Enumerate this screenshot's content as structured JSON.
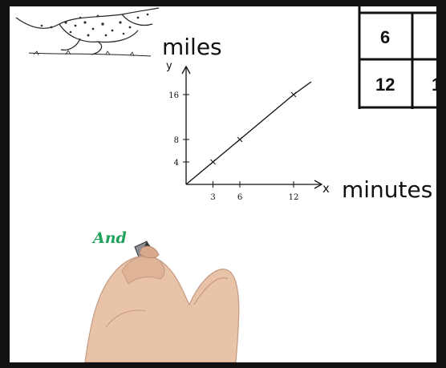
{
  "chart_data": {
    "type": "line",
    "xlabel": "minutes",
    "ylabel": "miles",
    "x_axis_letter": "x",
    "y_axis_letter": "y",
    "x_ticks": [
      "3",
      "6",
      "12"
    ],
    "y_ticks": [
      "16",
      "8",
      "4"
    ],
    "x_tick_values": [
      3,
      6,
      12
    ],
    "y_tick_values": [
      16,
      8,
      4
    ],
    "xlim": [
      0,
      16
    ],
    "ylim": [
      0,
      20
    ],
    "series": [
      {
        "x": [
          0,
          3,
          6,
          12
        ],
        "y": [
          0,
          4,
          8,
          16
        ]
      }
    ],
    "grid": false
  },
  "table": {
    "rows": [
      [
        "6",
        ""
      ],
      [
        "12",
        "1"
      ]
    ]
  },
  "caption": {
    "text": "And",
    "color": "#1fa35a"
  },
  "icons": [
    "cheetah-illustration",
    "hand-holding-marker"
  ]
}
